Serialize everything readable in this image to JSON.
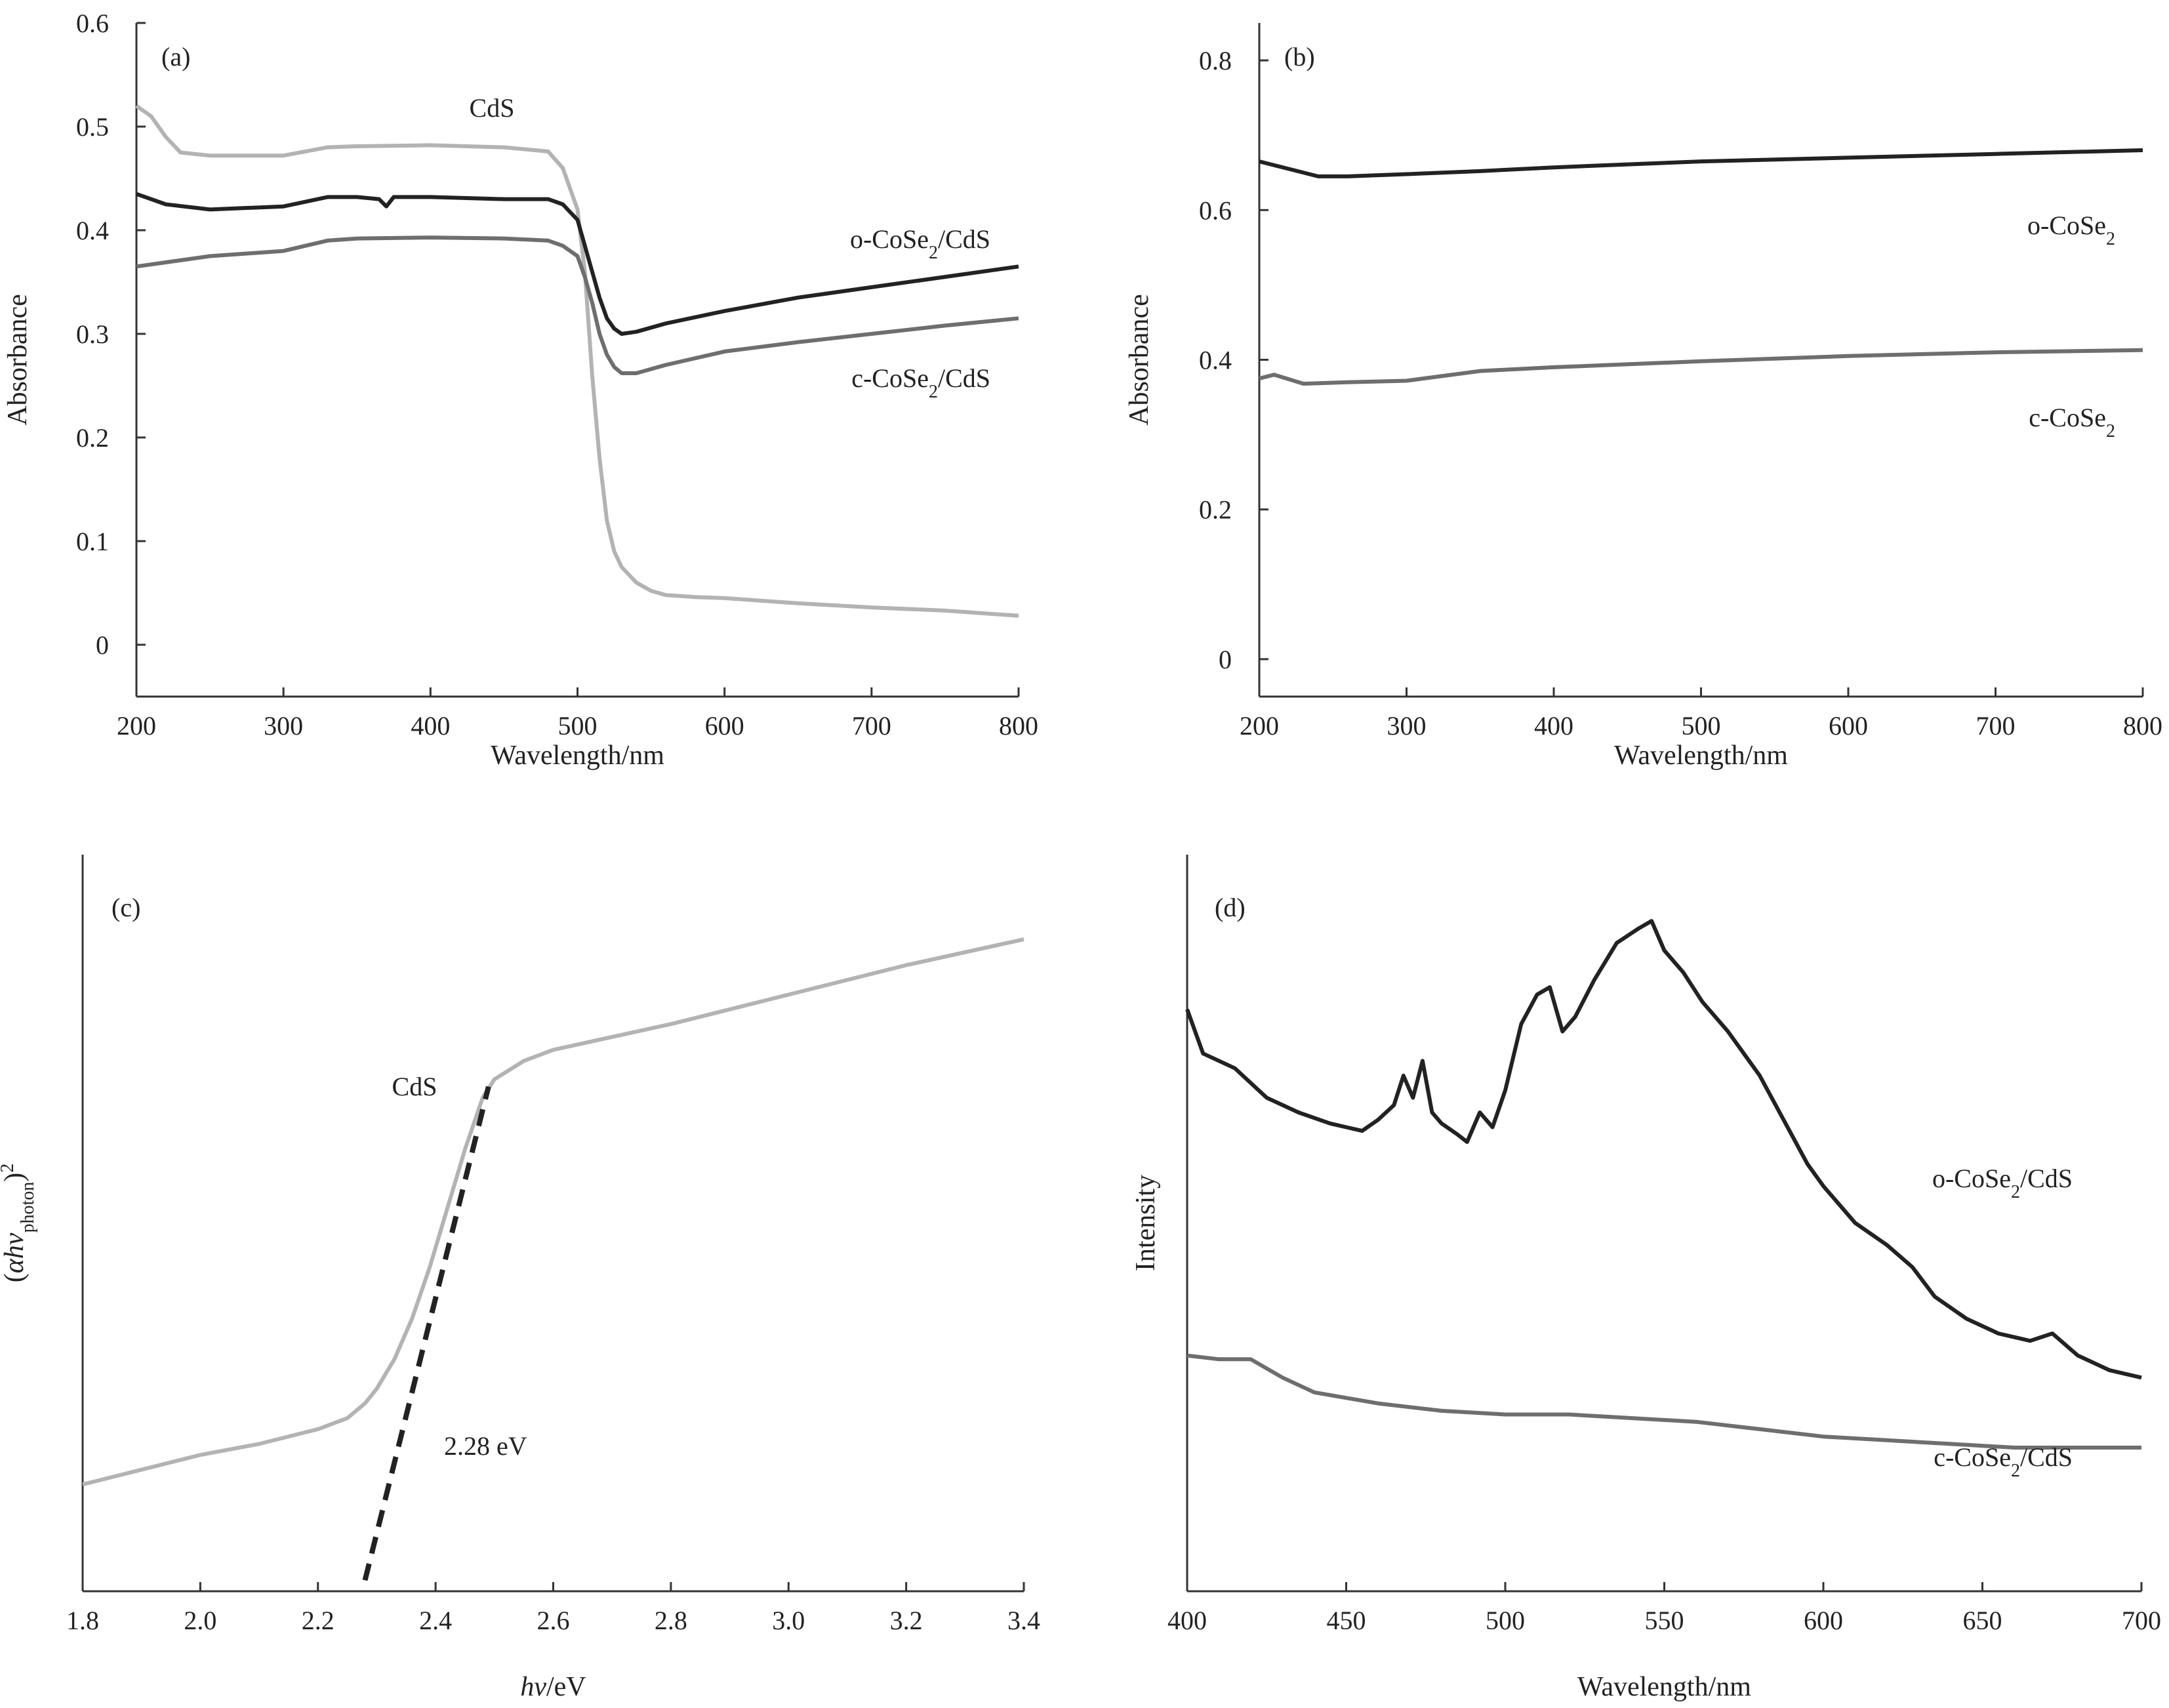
{
  "chart_data": [
    {
      "panel": "(a)",
      "type": "line",
      "xlabel": "Wavelength/nm",
      "ylabel": "Absorbance",
      "xlim": [
        200,
        800
      ],
      "ylim": [
        -0.05,
        0.6
      ],
      "xticks": [
        200,
        300,
        400,
        500,
        600,
        700,
        800
      ],
      "yticks": [
        0,
        0.1,
        0.2,
        0.3,
        0.4,
        0.5,
        0.6
      ],
      "series": [
        {
          "name": "CdS",
          "color": "#b3b3b3",
          "x": [
            200,
            210,
            220,
            230,
            250,
            300,
            330,
            350,
            400,
            450,
            480,
            490,
            500,
            505,
            510,
            515,
            520,
            525,
            530,
            540,
            550,
            560,
            580,
            600,
            650,
            700,
            750,
            800
          ],
          "y": [
            0.52,
            0.51,
            0.49,
            0.475,
            0.472,
            0.472,
            0.48,
            0.481,
            0.482,
            0.48,
            0.476,
            0.46,
            0.42,
            0.36,
            0.26,
            0.18,
            0.12,
            0.09,
            0.075,
            0.06,
            0.052,
            0.048,
            0.046,
            0.045,
            0.04,
            0.036,
            0.033,
            0.028
          ]
        },
        {
          "name": "o-CoSe₂/CdS",
          "color": "#222222",
          "x": [
            200,
            220,
            250,
            300,
            330,
            350,
            365,
            370,
            375,
            400,
            450,
            480,
            490,
            500,
            505,
            510,
            515,
            520,
            525,
            530,
            540,
            560,
            600,
            650,
            700,
            750,
            800
          ],
          "y": [
            0.435,
            0.425,
            0.42,
            0.423,
            0.432,
            0.432,
            0.43,
            0.423,
            0.432,
            0.432,
            0.43,
            0.43,
            0.425,
            0.41,
            0.385,
            0.36,
            0.335,
            0.315,
            0.305,
            0.3,
            0.302,
            0.31,
            0.322,
            0.335,
            0.345,
            0.355,
            0.365
          ]
        },
        {
          "name": "c-CoSe₂/CdS",
          "color": "#6e6e6e",
          "x": [
            200,
            250,
            300,
            330,
            350,
            400,
            450,
            480,
            490,
            500,
            505,
            510,
            515,
            520,
            525,
            530,
            540,
            560,
            600,
            650,
            700,
            750,
            800
          ],
          "y": [
            0.365,
            0.375,
            0.38,
            0.39,
            0.392,
            0.393,
            0.392,
            0.39,
            0.385,
            0.375,
            0.355,
            0.33,
            0.3,
            0.28,
            0.268,
            0.262,
            0.262,
            0.27,
            0.283,
            0.292,
            0.3,
            0.308,
            0.315
          ]
        }
      ]
    },
    {
      "panel": "(b)",
      "type": "line",
      "xlabel": "Wavelength/nm",
      "ylabel": "Absorbance",
      "xlim": [
        200,
        800
      ],
      "ylim": [
        -0.05,
        0.85
      ],
      "xticks": [
        200,
        300,
        400,
        500,
        600,
        700,
        800
      ],
      "yticks": [
        0,
        0.2,
        0.4,
        0.6,
        0.8
      ],
      "series": [
        {
          "name": "o-CoSe₂",
          "color": "#222222",
          "x": [
            200,
            220,
            240,
            260,
            300,
            350,
            400,
            500,
            600,
            700,
            800
          ],
          "y": [
            0.665,
            0.655,
            0.645,
            0.645,
            0.648,
            0.652,
            0.657,
            0.665,
            0.67,
            0.675,
            0.68
          ]
        },
        {
          "name": "c-CoSe₂",
          "color": "#6e6e6e",
          "x": [
            200,
            210,
            230,
            260,
            300,
            350,
            400,
            500,
            600,
            700,
            800
          ],
          "y": [
            0.375,
            0.38,
            0.368,
            0.37,
            0.372,
            0.385,
            0.39,
            0.398,
            0.405,
            0.41,
            0.413
          ]
        }
      ]
    },
    {
      "panel": "(c)",
      "type": "line",
      "xlabel": "hv/eV",
      "ylabel": "(αhv_photon)²",
      "xlim": [
        1.8,
        3.4
      ],
      "ylim": [
        0,
        100
      ],
      "xticks": [
        1.8,
        2.0,
        2.2,
        2.4,
        2.6,
        2.8,
        3.0,
        3.2,
        3.4
      ],
      "annotation": "2.28 eV",
      "series": [
        {
          "name": "CdS",
          "color": "#b3b3b3",
          "x": [
            1.8,
            1.9,
            2.0,
            2.1,
            2.2,
            2.25,
            2.28,
            2.3,
            2.33,
            2.36,
            2.39,
            2.42,
            2.45,
            2.48,
            2.5,
            2.55,
            2.6,
            2.8,
            3.0,
            3.2,
            3.4
          ],
          "y": [
            14.5,
            16.5,
            18.5,
            20,
            22,
            23.5,
            25.5,
            27.5,
            31.5,
            37,
            44,
            52,
            60,
            67,
            69.5,
            72,
            73.5,
            77,
            81,
            85,
            88.5
          ]
        },
        {
          "name": "",
          "style": "dashed",
          "color": "#222222",
          "x": [
            2.28,
            2.49
          ],
          "y": [
            1.5,
            68.5
          ]
        }
      ]
    },
    {
      "panel": "(d)",
      "type": "line",
      "xlabel": "Wavelength/nm",
      "ylabel": "Intensity",
      "xlim": [
        400,
        700
      ],
      "ylim": [
        0,
        100
      ],
      "xticks": [
        400,
        450,
        500,
        550,
        600,
        650,
        700
      ],
      "series": [
        {
          "name": "o-CoSe₂/CdS",
          "color": "#222222",
          "x": [
            400,
            405,
            415,
            425,
            435,
            445,
            450,
            455,
            460,
            465,
            468,
            471,
            474,
            477,
            480,
            485,
            488,
            492,
            496,
            500,
            505,
            510,
            514,
            518,
            522,
            528,
            535,
            542,
            546,
            550,
            556,
            562,
            570,
            580,
            590,
            595,
            600,
            610,
            620,
            628,
            635,
            645,
            655,
            665,
            672,
            680,
            690,
            700
          ],
          "y": [
            79,
            73,
            71,
            67,
            65,
            63.5,
            63,
            62.5,
            64,
            66,
            70,
            67,
            72,
            65,
            63.5,
            62,
            61,
            65,
            63,
            68,
            77,
            81,
            82,
            76,
            78,
            83,
            88,
            90,
            91,
            87,
            84,
            80,
            76,
            70,
            62,
            58,
            55,
            50,
            47,
            44,
            40,
            37,
            35,
            34,
            35,
            32,
            30,
            29
          ]
        },
        {
          "name": "c-CoSe₂/CdS",
          "color": "#6e6e6e",
          "x": [
            400,
            410,
            420,
            430,
            440,
            460,
            480,
            500,
            520,
            540,
            560,
            580,
            600,
            620,
            640,
            660,
            680,
            700
          ],
          "y": [
            32,
            31.5,
            31.5,
            29,
            27,
            25.5,
            24.5,
            24,
            24,
            23.5,
            23,
            22,
            21,
            20.5,
            20,
            19.5,
            19.5,
            19.5
          ]
        }
      ]
    }
  ]
}
